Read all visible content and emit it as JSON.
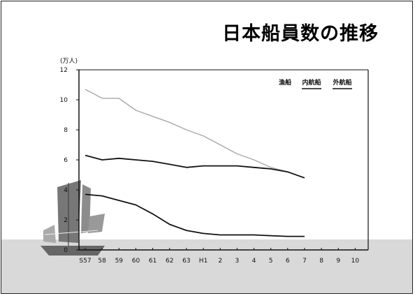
{
  "chart_data": {
    "type": "line",
    "title": "日本船員数の推移",
    "y_unit": "(万人)",
    "ylim": [
      0,
      12
    ],
    "y_ticks": [
      0,
      2,
      4,
      6,
      8,
      10,
      12
    ],
    "categories": [
      "S57",
      "58",
      "59",
      "60",
      "61",
      "62",
      "63",
      "H1",
      "2",
      "3",
      "4",
      "5",
      "6",
      "7",
      "8",
      "9",
      "10"
    ],
    "series": [
      {
        "name": "漁船",
        "color": "#a8a8a8",
        "values": [
          10.7,
          10.1,
          10.1,
          9.3,
          8.9,
          8.5,
          8.0,
          7.6,
          7.0,
          6.4,
          6.0,
          5.5,
          5.2,
          4.8,
          null,
          null,
          null
        ]
      },
      {
        "name": "内航船",
        "color": "#111111",
        "values": [
          6.3,
          6.0,
          6.1,
          6.0,
          5.9,
          5.7,
          5.5,
          5.6,
          5.6,
          5.6,
          5.5,
          5.4,
          5.2,
          4.8,
          null,
          null,
          null
        ]
      },
      {
        "name": "外航船",
        "color": "#111111",
        "values": [
          3.7,
          3.6,
          3.3,
          3.0,
          2.4,
          1.7,
          1.3,
          1.1,
          1.0,
          1.0,
          1.0,
          0.95,
          0.9,
          0.9,
          null,
          null,
          null
        ]
      }
    ],
    "legend": "top-right",
    "grid": false
  }
}
